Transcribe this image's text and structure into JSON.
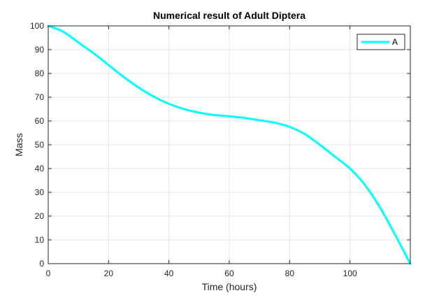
{
  "chart_data": {
    "type": "line",
    "title": "Numerical result of Adult Diptera",
    "xlabel": "Time (hours)",
    "ylabel": "Mass",
    "xlim": [
      0,
      120
    ],
    "ylim": [
      0,
      100
    ],
    "xticks": [
      0,
      20,
      40,
      60,
      80,
      100
    ],
    "yticks": [
      0,
      10,
      20,
      30,
      40,
      50,
      60,
      70,
      80,
      90,
      100
    ],
    "grid": true,
    "legend_position": "top-right",
    "series": [
      {
        "name": "A",
        "color": "#00ffff",
        "x": [
          0,
          5,
          10,
          15,
          20,
          25,
          30,
          35,
          40,
          45,
          50,
          55,
          60,
          65,
          70,
          75,
          80,
          85,
          90,
          95,
          100,
          105,
          110,
          115,
          120
        ],
        "y": [
          100,
          97.5,
          93,
          88.5,
          83.5,
          78.5,
          74,
          70.2,
          67.2,
          65,
          63.5,
          62.5,
          62,
          61.3,
          60.3,
          59.3,
          57.5,
          54.5,
          50,
          45,
          40,
          33,
          23.5,
          12,
          0
        ]
      }
    ]
  }
}
